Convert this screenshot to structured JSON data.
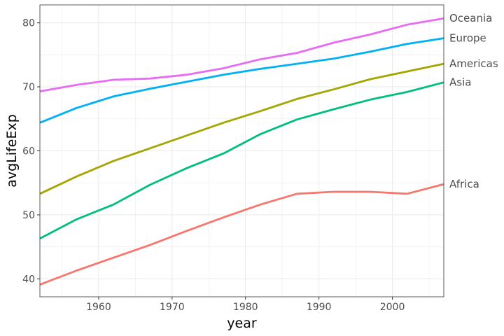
{
  "chart_data": {
    "type": "line",
    "xlabel": "year",
    "ylabel": "avgLifeExp",
    "xlim": [
      1952,
      2007
    ],
    "ylim": [
      37.2,
      82.8
    ],
    "x": [
      1952,
      1957,
      1962,
      1967,
      1972,
      1977,
      1982,
      1987,
      1992,
      1997,
      2002,
      2007
    ],
    "x_ticks": [
      1960,
      1970,
      1980,
      1990,
      2000
    ],
    "x_tick_labels": [
      "1960",
      "1970",
      "1980",
      "1990",
      "2000"
    ],
    "y_ticks": [
      40,
      50,
      60,
      70,
      80
    ],
    "y_tick_labels": [
      "40",
      "50",
      "60",
      "70",
      "80"
    ],
    "grid": true,
    "legend": "direct labels at right end of lines",
    "series": [
      {
        "name": "Africa",
        "color": "#F8766D",
        "values": [
          39.1,
          41.3,
          43.3,
          45.3,
          47.5,
          49.6,
          51.6,
          53.3,
          53.6,
          53.6,
          53.3,
          54.8
        ]
      },
      {
        "name": "Americas",
        "color": "#A3A500",
        "values": [
          53.3,
          56.0,
          58.4,
          60.4,
          62.4,
          64.4,
          66.2,
          68.1,
          69.6,
          71.2,
          72.4,
          73.6
        ]
      },
      {
        "name": "Asia",
        "color": "#00BF7D",
        "values": [
          46.3,
          49.3,
          51.6,
          54.7,
          57.3,
          59.6,
          62.6,
          64.9,
          66.5,
          68.0,
          69.2,
          70.7
        ]
      },
      {
        "name": "Europe",
        "color": "#00B0F6",
        "values": [
          64.4,
          66.7,
          68.5,
          69.7,
          70.8,
          71.9,
          72.8,
          73.6,
          74.4,
          75.5,
          76.7,
          77.6
        ]
      },
      {
        "name": "Oceania",
        "color": "#E76BF3",
        "values": [
          69.3,
          70.3,
          71.1,
          71.3,
          71.9,
          72.9,
          74.3,
          75.3,
          76.9,
          78.2,
          79.7,
          80.7
        ]
      }
    ]
  }
}
